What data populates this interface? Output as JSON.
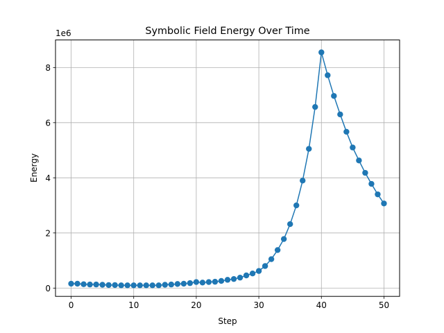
{
  "chart_data": {
    "type": "line",
    "title": "Symbolic Field Energy Over Time",
    "xlabel": "Step",
    "ylabel": "Energy",
    "y_scale_label": "1e6",
    "xlim": [
      -2.5,
      52.5
    ],
    "ylim": [
      -0.3,
      9.0
    ],
    "x_ticks": [
      0,
      10,
      20,
      30,
      40,
      50
    ],
    "y_ticks": [
      0,
      2,
      4,
      6,
      8
    ],
    "x_tick_labels": [
      "0",
      "10",
      "20",
      "30",
      "40",
      "50"
    ],
    "y_tick_labels": [
      "0",
      "2",
      "4",
      "6",
      "8"
    ],
    "grid": true,
    "color": "#1f77b4",
    "series": [
      {
        "x": [
          0,
          1,
          2,
          3,
          4,
          5,
          6,
          7,
          8,
          9,
          10,
          11,
          12,
          13,
          14,
          15,
          16,
          17,
          18,
          19,
          20,
          21,
          22,
          23,
          24,
          25,
          26,
          27,
          28,
          29,
          30,
          31,
          32,
          33,
          34,
          35,
          36,
          37,
          38,
          39,
          40,
          41,
          42,
          43,
          44,
          45,
          46,
          47,
          48,
          49,
          50
        ],
        "y": [
          0.16,
          0.16,
          0.14,
          0.13,
          0.13,
          0.12,
          0.11,
          0.11,
          0.1,
          0.1,
          0.1,
          0.1,
          0.1,
          0.1,
          0.1,
          0.12,
          0.13,
          0.15,
          0.16,
          0.18,
          0.22,
          0.2,
          0.22,
          0.23,
          0.26,
          0.3,
          0.33,
          0.38,
          0.46,
          0.53,
          0.62,
          0.8,
          1.05,
          1.38,
          1.78,
          2.32,
          3.0,
          3.9,
          5.05,
          6.57,
          8.55,
          7.72,
          6.97,
          6.3,
          5.67,
          5.1,
          4.63,
          4.18,
          3.78,
          3.4,
          3.07
        ]
      }
    ]
  }
}
